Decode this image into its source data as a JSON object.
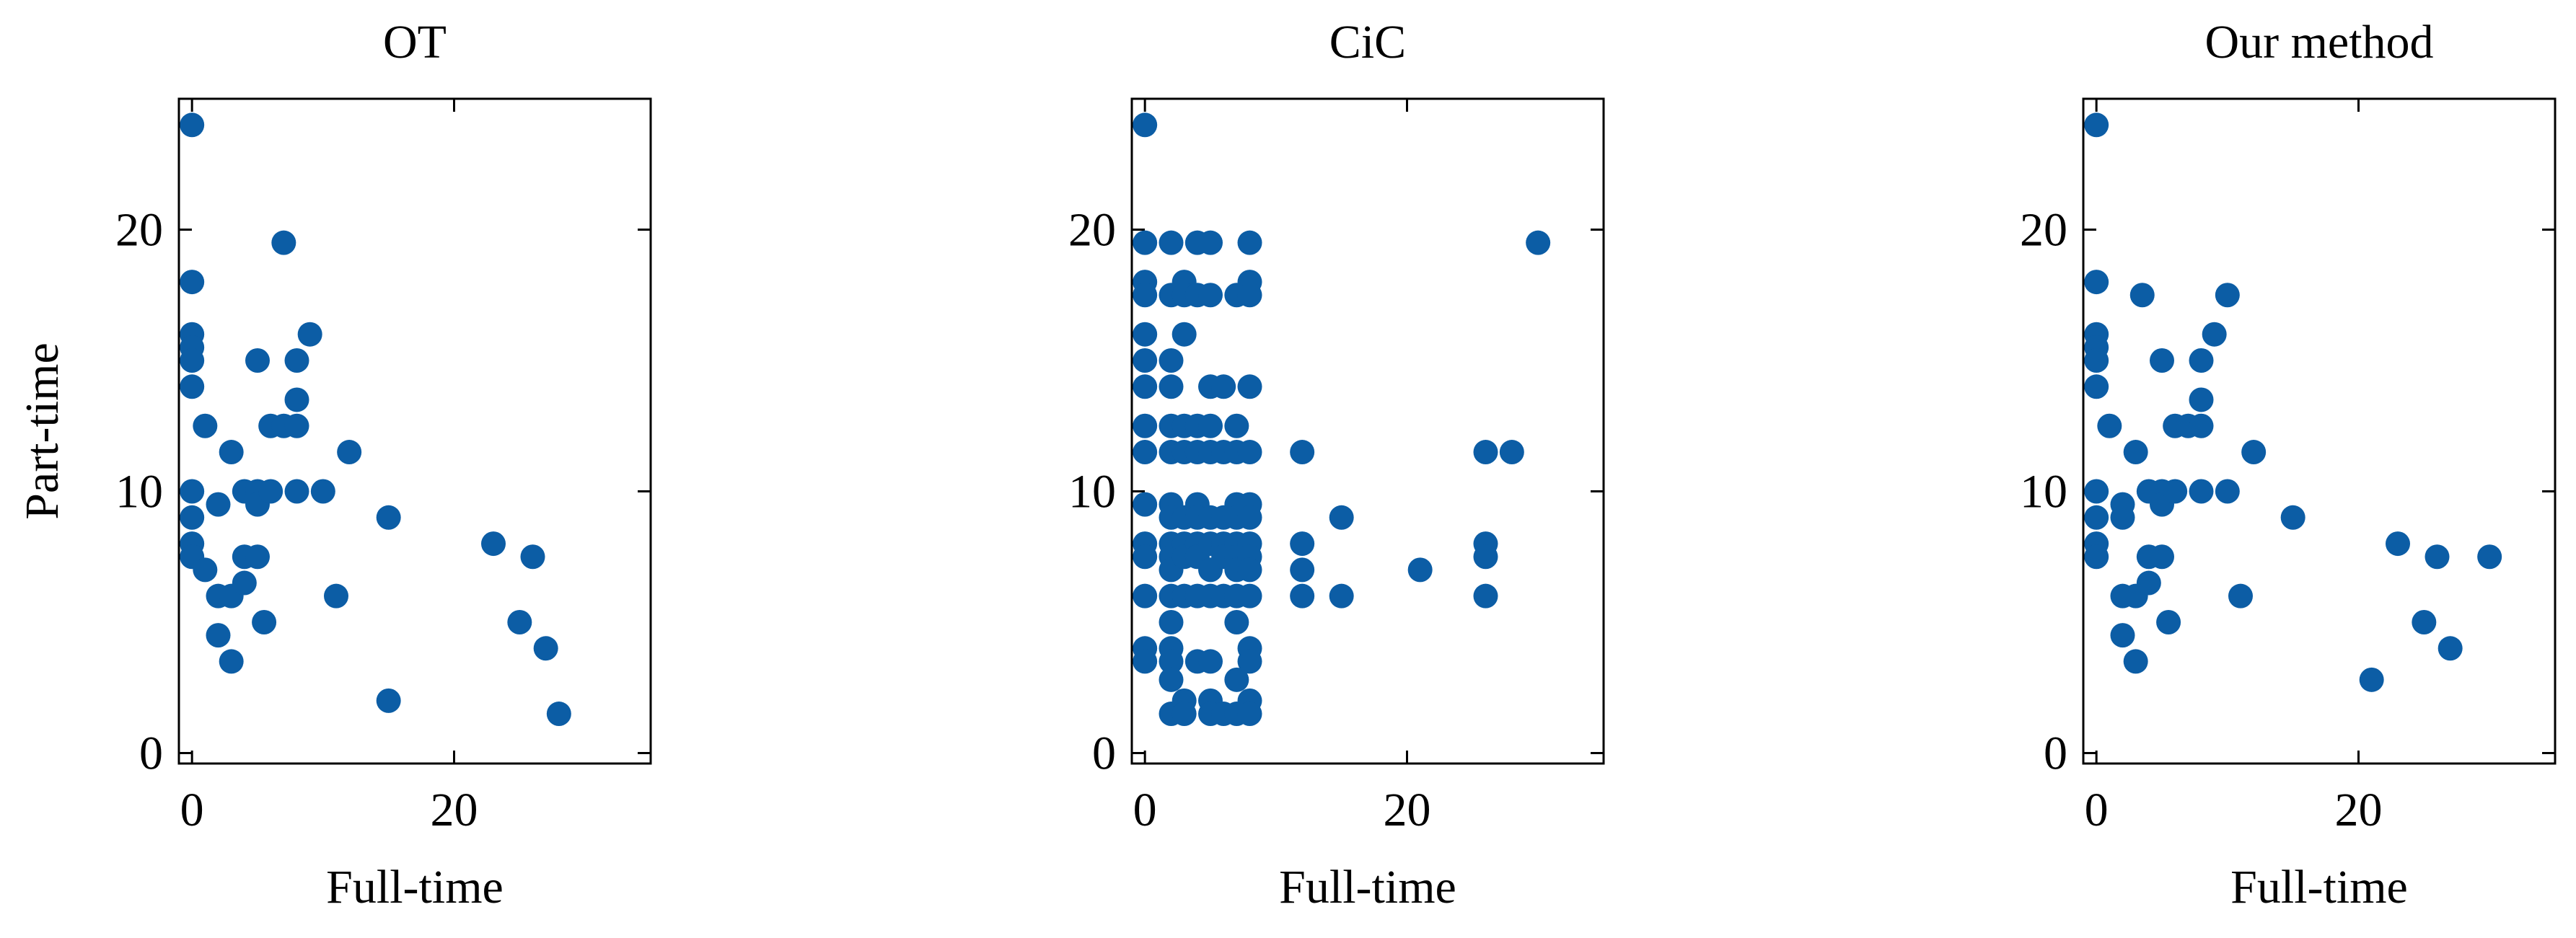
{
  "chart_data": [
    {
      "type": "scatter",
      "title": "OT",
      "xlabel": "Full-time",
      "ylabel": "Part-time",
      "color": "#0C5DA5",
      "xlim": [
        -1,
        35
      ],
      "ylim": [
        -0.4,
        25
      ],
      "xticks": [
        0,
        20
      ],
      "yticks": [
        0,
        10,
        20
      ],
      "x": [
        0,
        0,
        0,
        0,
        0,
        0,
        0,
        0,
        0,
        0,
        1,
        1,
        2,
        2,
        2,
        3,
        3,
        3,
        4,
        4,
        4,
        5,
        5,
        5,
        5,
        5.5,
        6,
        6,
        7,
        7,
        8,
        8,
        8,
        8,
        9,
        10,
        11,
        12,
        15,
        15,
        23,
        25,
        26,
        27,
        28
      ],
      "values": [
        24,
        18,
        16,
        15.5,
        15,
        14,
        10,
        9,
        8,
        7.5,
        7,
        12.5,
        9.5,
        6,
        4.5,
        6,
        11.5,
        3.5,
        10,
        7.5,
        6.5,
        15,
        10,
        9.5,
        7.5,
        5,
        10,
        12.5,
        19.5,
        12.5,
        12.5,
        13.5,
        15,
        10,
        16,
        10,
        6,
        11.5,
        9,
        2,
        8,
        5,
        7.5,
        4,
        1.5
      ]
    },
    {
      "type": "scatter",
      "title": "CiC",
      "xlabel": "Full-time",
      "color": "#0C5DA5",
      "xlim": [
        -1,
        35
      ],
      "ylim": [
        -0.4,
        25
      ],
      "xticks": [
        0,
        20
      ],
      "yticks": [
        0,
        10,
        20
      ],
      "x": [
        0,
        0,
        0,
        0,
        0,
        0,
        0,
        0,
        0,
        0,
        0,
        0,
        0,
        0,
        0,
        2,
        2,
        2,
        2,
        2,
        2,
        2,
        2,
        2,
        2,
        2,
        2,
        2,
        2,
        2,
        2,
        2,
        3,
        3,
        3,
        3,
        3,
        3,
        3,
        3,
        3,
        3,
        3,
        4,
        4,
        4,
        4,
        4,
        4,
        4,
        4,
        4,
        4,
        5,
        5,
        5,
        5,
        5,
        5,
        5,
        5,
        5,
        5,
        5,
        5,
        6,
        6,
        6,
        6,
        6,
        6,
        6,
        7,
        7,
        7,
        7,
        7,
        7,
        7,
        7,
        7,
        7,
        7,
        7,
        8,
        8,
        8,
        8,
        8,
        8,
        8,
        8,
        8,
        8,
        8,
        8,
        8,
        8,
        8,
        12,
        12,
        12,
        12,
        15,
        15,
        21,
        26,
        26,
        26,
        26,
        28,
        30
      ],
      "values": [
        24,
        19.5,
        18,
        17.5,
        16,
        15,
        14,
        12.5,
        11.5,
        9.5,
        8,
        7.5,
        6,
        4,
        3.5,
        19.5,
        17.5,
        15,
        14,
        12.5,
        11.5,
        9.5,
        9,
        8,
        7.5,
        7,
        6,
        5,
        4,
        3.5,
        2.8,
        1.5,
        18,
        17.5,
        16,
        12.5,
        11.5,
        9,
        8,
        7.5,
        6,
        2,
        1.5,
        19.5,
        17.5,
        12.5,
        11.5,
        9.5,
        9,
        8,
        7.5,
        6,
        3.5,
        19.5,
        17.5,
        14,
        12.5,
        11.5,
        9,
        8,
        7,
        6,
        3.5,
        2,
        1.5,
        14,
        11.5,
        9,
        8,
        7.5,
        6,
        1.5,
        17.5,
        12.5,
        11.5,
        9.5,
        9,
        8,
        7.5,
        7,
        6,
        5,
        2.8,
        1.5,
        19.5,
        18,
        17.5,
        14,
        11.5,
        9.5,
        9,
        8,
        7.5,
        7,
        6,
        4,
        3.5,
        2,
        1.5,
        11.5,
        8,
        7,
        6,
        9,
        6,
        7,
        11.5,
        8,
        7.5,
        6,
        11.5,
        19.5
      ]
    },
    {
      "type": "scatter",
      "title": "Our method",
      "xlabel": "Full-time",
      "color": "#0C5DA5",
      "xlim": [
        -1,
        35
      ],
      "ylim": [
        -0.4,
        25
      ],
      "xticks": [
        0,
        20
      ],
      "yticks": [
        0,
        10,
        20
      ],
      "x": [
        0,
        0,
        0,
        0,
        0,
        0,
        0,
        0,
        0,
        0,
        1,
        2,
        2,
        2,
        2,
        3,
        3,
        3,
        3.5,
        4,
        4,
        4,
        5,
        5,
        5,
        5,
        5.5,
        6,
        6,
        7,
        8,
        8,
        8,
        8,
        9,
        10,
        10,
        11,
        12,
        15,
        21,
        23,
        25,
        26,
        27,
        30
      ],
      "values": [
        24,
        18,
        16,
        15.5,
        15,
        14,
        10,
        9,
        8,
        7.5,
        12.5,
        9.5,
        9,
        6,
        4.5,
        6,
        11.5,
        3.5,
        17.5,
        10,
        7.5,
        6.5,
        15,
        10,
        9.5,
        7.5,
        5,
        10,
        12.5,
        12.5,
        12.5,
        13.5,
        15,
        10,
        16,
        10,
        17.5,
        6,
        11.5,
        9,
        2.8,
        8,
        5,
        7.5,
        4,
        7.5
      ]
    }
  ]
}
